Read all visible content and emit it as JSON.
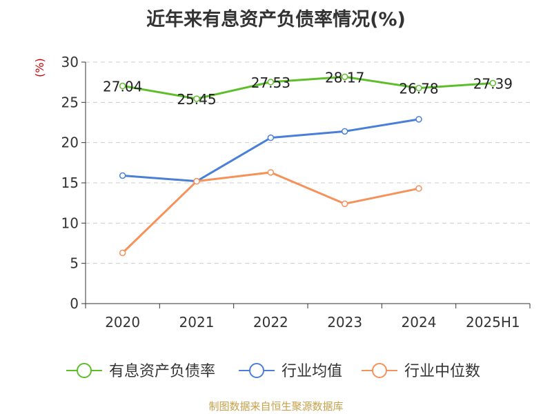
{
  "title": "近年来有息资产负债率情况(%)",
  "unit": "(%)",
  "source": "制图数据来自恒生聚源数据库",
  "chart_data": {
    "type": "line",
    "categories": [
      "2020",
      "2021",
      "2022",
      "2023",
      "2024",
      "2025H1"
    ],
    "ylim": [
      0,
      30
    ],
    "yticks": [
      0,
      5,
      10,
      15,
      20,
      25,
      30
    ],
    "grid": true,
    "legend_position": "bottom",
    "series": [
      {
        "name": "有息资产负债率",
        "color": "#5cbf2a",
        "values": [
          27.04,
          25.45,
          27.53,
          28.17,
          26.78,
          27.39
        ],
        "labels": [
          "27.04",
          "25.45",
          "27.53",
          "28.17",
          "26.78",
          "27.39"
        ]
      },
      {
        "name": "行业均值",
        "color": "#4a7fd8",
        "values": [
          15.9,
          15.2,
          20.6,
          21.4,
          22.9,
          null
        ]
      },
      {
        "name": "行业中位数",
        "color": "#f5925a",
        "values": [
          6.3,
          15.2,
          16.3,
          12.4,
          14.3,
          null
        ]
      }
    ]
  }
}
